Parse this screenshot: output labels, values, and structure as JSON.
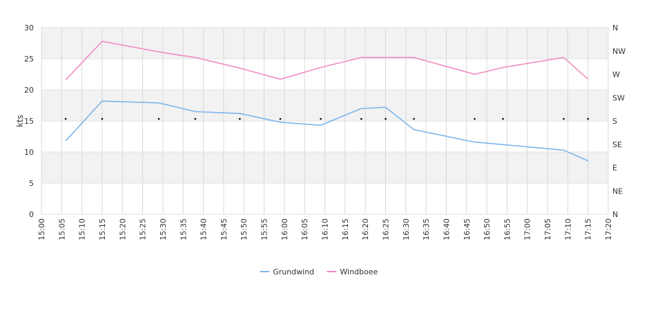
{
  "chart_data": {
    "type": "line",
    "ylabel": "kts",
    "ylim": [
      0,
      30
    ],
    "y_ticks": [
      "0",
      "5",
      "10",
      "15",
      "20",
      "25",
      "30"
    ],
    "direction_ticks": [
      "N",
      "NE",
      "E",
      "SE",
      "S",
      "SW",
      "W",
      "NW",
      "N"
    ],
    "x_ticks": [
      "15:00",
      "15:05",
      "15:10",
      "15:15",
      "15:20",
      "15:25",
      "15:30",
      "15:35",
      "15:40",
      "15:45",
      "15:50",
      "15:55",
      "16:00",
      "16:05",
      "16:10",
      "16:15",
      "16:20",
      "16:25",
      "16:30",
      "16:35",
      "16:40",
      "16:45",
      "16:50",
      "16:55",
      "17:00",
      "17:05",
      "17:10",
      "17:15",
      "17:20"
    ],
    "x_range": [
      "15:00",
      "17:20"
    ],
    "grid": true,
    "legend_position": "bottom-center",
    "series": [
      {
        "name": "Grundwind",
        "color": "#7cb5ec",
        "points": [
          [
            "15:06",
            11.8
          ],
          [
            "15:15",
            18.2
          ],
          [
            "15:29",
            17.9
          ],
          [
            "15:38",
            16.5
          ],
          [
            "15:49",
            16.2
          ],
          [
            "15:59",
            14.8
          ],
          [
            "16:09",
            14.3
          ],
          [
            "16:19",
            17.0
          ],
          [
            "16:25",
            17.2
          ],
          [
            "16:32",
            13.6
          ],
          [
            "16:47",
            11.6
          ],
          [
            "16:54",
            11.2
          ],
          [
            "17:09",
            10.3
          ],
          [
            "17:15",
            8.6
          ]
        ]
      },
      {
        "name": "Windboee",
        "color": "#f08cc0",
        "points": [
          [
            "15:06",
            21.6
          ],
          [
            "15:15",
            27.8
          ],
          [
            "15:29",
            26.1
          ],
          [
            "15:38",
            25.2
          ],
          [
            "15:49",
            23.5
          ],
          [
            "15:59",
            21.7
          ],
          [
            "16:09",
            23.6
          ],
          [
            "16:19",
            25.2
          ],
          [
            "16:25",
            25.2
          ],
          [
            "16:32",
            25.2
          ],
          [
            "16:47",
            22.5
          ],
          [
            "16:54",
            23.6
          ],
          [
            "17:09",
            25.2
          ],
          [
            "17:15",
            21.7
          ]
        ]
      }
    ],
    "direction_markers": [
      "15:06",
      "15:15",
      "15:29",
      "15:38",
      "15:49",
      "15:59",
      "16:09",
      "16:19",
      "16:25",
      "16:32",
      "16:47",
      "16:54",
      "17:09",
      "17:15"
    ]
  }
}
